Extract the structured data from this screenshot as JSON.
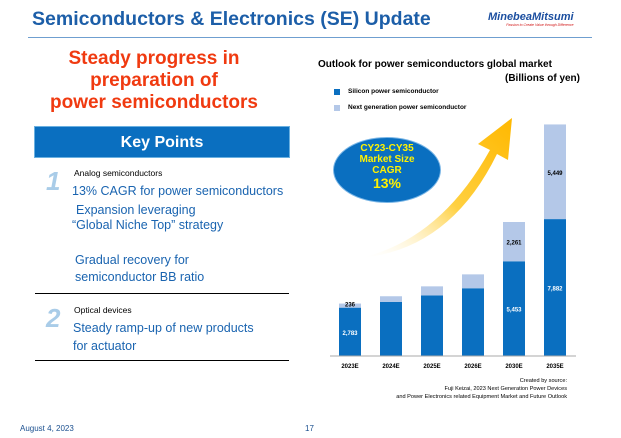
{
  "header": {
    "title": "Semiconductors & Electronics (SE) Update",
    "logo_name": "MinebeaMitsumi",
    "logo_tagline": "Passion to Create Value through Difference"
  },
  "headline": [
    "Steady progress in",
    "preparation of",
    "power semiconductors"
  ],
  "key_points": {
    "title": "Key Points",
    "sections": [
      {
        "number": "1",
        "category": "Analog semiconductors",
        "points": [
          "13% CAGR for power semiconductors",
          "Expansion leveraging",
          "“Global Niche Top” strategy",
          "Gradual recovery for",
          "semiconductor BB ratio"
        ]
      },
      {
        "number": "2",
        "category": "Optical devices",
        "points": [
          "Steady ramp-up of new products",
          "for actuator"
        ]
      }
    ]
  },
  "colors": {
    "silicon": "#0a6fc0",
    "next_gen": "#b4c8e8",
    "accent": "#f03a10",
    "arrow": "#ffc000"
  },
  "callout": {
    "lines": [
      "CY23-CY35",
      "Market Size",
      "CAGR"
    ],
    "value": "13%"
  },
  "chart_data": {
    "type": "bar",
    "stacked": true,
    "title": "Outlook for power semiconductors global market",
    "unit": "(Billions of yen)",
    "categories": [
      "2023E",
      "2024E",
      "2025E",
      "2026E",
      "2030E",
      "2035E"
    ],
    "series": [
      {
        "name": "Silicon power semiconductor",
        "values": [
          2783,
          3110,
          3490,
          3900,
          5453,
          7882
        ],
        "labels": [
          "2,783",
          "",
          "",
          "",
          "5,453",
          "7,882"
        ]
      },
      {
        "name": "Next generation power semiconductor",
        "values": [
          236,
          330,
          520,
          800,
          2261,
          5449
        ],
        "labels": [
          "236",
          "",
          "",
          "",
          "2,261",
          "5,449"
        ]
      }
    ],
    "legend": "top-left",
    "grid": false
  },
  "source": [
    "Created by source:",
    "Fuji Keizai, 2023 Next Generation Power Devices",
    "and Power Electronics related Equipment Market and Future Outlook"
  ],
  "footer": {
    "date": "August 4, 2023",
    "page": "17"
  }
}
